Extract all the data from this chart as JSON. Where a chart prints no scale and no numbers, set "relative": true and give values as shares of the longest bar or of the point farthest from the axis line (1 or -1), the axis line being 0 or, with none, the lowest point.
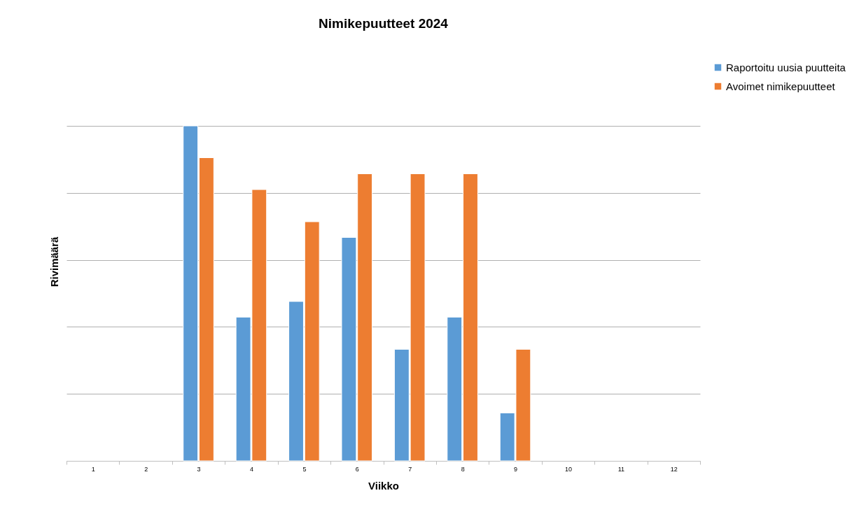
{
  "chart_data": {
    "type": "bar",
    "title": "Nimikepuutteet 2024",
    "xlabel": "Viikko",
    "ylabel": "Rivimäärä",
    "relative": true,
    "grid": "y",
    "legend": "right",
    "categories": [
      "1",
      "2",
      "3",
      "4",
      "5",
      "6",
      "7",
      "8",
      "9",
      "10",
      "11",
      "12"
    ],
    "series": [
      {
        "name": "Raportoitu uusia puutteita",
        "color": "#5b9bd5",
        "values": [
          null,
          null,
          1,
          0.429,
          0.476,
          0.667,
          0.333,
          0.429,
          0.143,
          null,
          null,
          null
        ]
      },
      {
        "name": "Avoimet nimikepuutteet",
        "color": "#ed7d31",
        "values": [
          null,
          null,
          0.905,
          0.81,
          0.714,
          0.857,
          0.857,
          0.857,
          0.333,
          null,
          null,
          null
        ]
      }
    ]
  }
}
